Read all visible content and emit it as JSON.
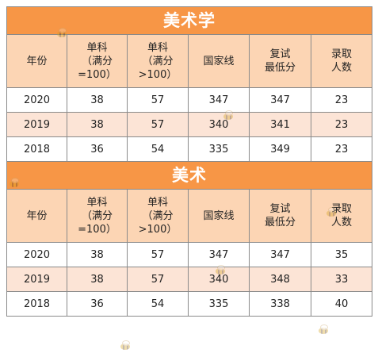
{
  "sections": [
    {
      "title": "美术学",
      "headers": [
        "年份",
        "单科\n（满分\n=100）",
        "单科\n（满分\n>100）",
        "国家线",
        "复试\n最低分",
        "录取\n人数"
      ],
      "rows": [
        [
          "2020",
          "38",
          "57",
          "347",
          "347",
          "23"
        ],
        [
          "2019",
          "38",
          "57",
          "340",
          "341",
          "23"
        ],
        [
          "2018",
          "36",
          "54",
          "335",
          "349",
          "23"
        ]
      ]
    },
    {
      "title": "美术",
      "headers": [
        "年份",
        "单科\n（满分\n=100）",
        "单科\n（满分\n>100）",
        "国家线",
        "复试\n最低分",
        "录取\n人数"
      ],
      "rows": [
        [
          "2020",
          "38",
          "57",
          "347",
          "347",
          "35"
        ],
        [
          "2019",
          "38",
          "57",
          "340",
          "348",
          "33"
        ],
        [
          "2018",
          "36",
          "54",
          "335",
          "338",
          "40"
        ]
      ]
    }
  ],
  "watermark_icon": "bee-logo-icon",
  "colors": {
    "title_bg": "#f79646",
    "header_bg": "#fcd5b4",
    "alt_row_bg": "#fce4d6"
  }
}
